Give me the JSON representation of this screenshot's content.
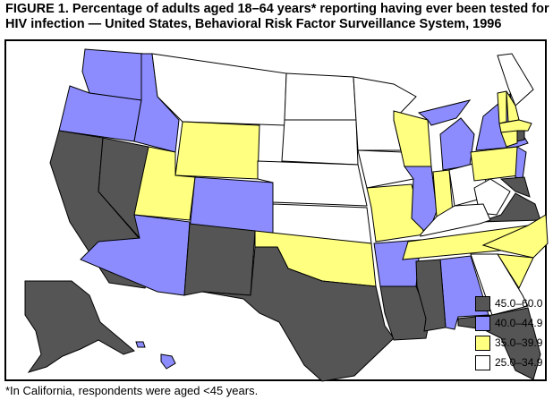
{
  "title": "FIGURE 1. Percentage of adults aged 18–64 years* reporting having ever been tested for HIV infection — United States, Behavioral Risk Factor Surveillance System, 1996",
  "footnote": "*In California, respondents were aged <45 years.",
  "legend": [
    {
      "label": "45.0–60.0",
      "color": "#555555"
    },
    {
      "label": "40.0–44.9",
      "color": "#8c8cff"
    },
    {
      "label": "35.0–39.9",
      "color": "#ffff80"
    },
    {
      "label": "25.0–34.9",
      "color": "#ffffff"
    }
  ],
  "state_categories": {
    "WA": 2,
    "OR": 2,
    "CA": 1,
    "NV": 1,
    "ID": 2,
    "MT": 4,
    "WY": 3,
    "UT": 3,
    "CO": 2,
    "AZ": 2,
    "NM": 1,
    "ND": 4,
    "SD": 4,
    "NE": 4,
    "KS": 4,
    "OK": 3,
    "TX": 1,
    "MN": 4,
    "IA": 4,
    "MO": 3,
    "AR": 2,
    "LA": 1,
    "WI": 3,
    "IL": 2,
    "MI": 2,
    "IN": 3,
    "OH": 4,
    "KY": 4,
    "TN": 3,
    "MS": 1,
    "AL": 2,
    "GA": 4,
    "FL": 1,
    "SC": 3,
    "NC": 3,
    "VA": 1,
    "WV": 4,
    "MD": 1,
    "PA": 3,
    "NY": 2,
    "NJ": 2,
    "ME": 4,
    "VT": 3,
    "NH": 3,
    "MA": 3,
    "CT": 3,
    "RI": 1,
    "AK": 1,
    "HI": 2
  }
}
